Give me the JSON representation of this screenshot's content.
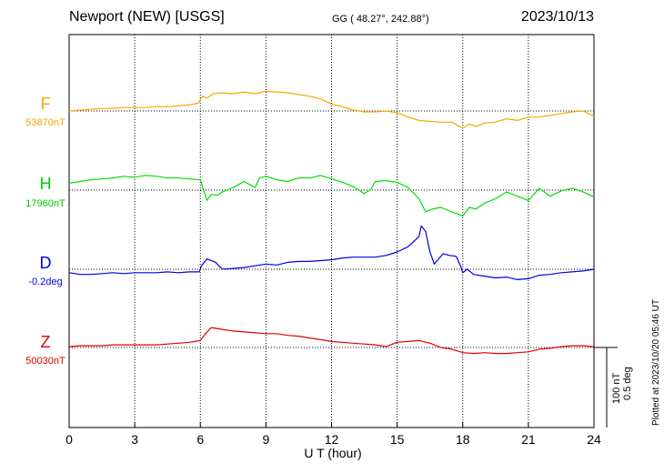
{
  "header": {
    "station": "Newport (NEW)  [USGS]",
    "coords": "GG ( 48.27°, 242.88°)",
    "date": "2023/10/13"
  },
  "footer": {
    "plotted": "Plotted at 2023/10/20 05:46 UT"
  },
  "scale": {
    "nt": "100 nT",
    "deg": "0.5 deg"
  },
  "chart_data": {
    "type": "line",
    "title": "Newport (NEW)  [USGS]",
    "xlabel": "U T (hour)",
    "xlim": [
      0,
      24
    ],
    "xticks": [
      "0",
      "3",
      "6",
      "9",
      "12",
      "15",
      "18",
      "21",
      "24"
    ],
    "grid": true,
    "series": [
      {
        "name": "F",
        "baseline": "53870nT",
        "units": "nT",
        "color": "#f5a800",
        "x": [
          0,
          0.5,
          1,
          1.5,
          2,
          2.5,
          3,
          3.5,
          4,
          4.5,
          5,
          5.5,
          5.9,
          6.1,
          6.3,
          6.6,
          7,
          7.5,
          8,
          8.5,
          9,
          9.5,
          10,
          10.5,
          11,
          11.5,
          12,
          12.5,
          13,
          13.5,
          14,
          14.5,
          15,
          15.5,
          16,
          16.5,
          17,
          17.5,
          18,
          18.3,
          18.6,
          19,
          19.5,
          20,
          20.5,
          21,
          21.5,
          22,
          22.5,
          23,
          23.5,
          24
        ],
        "y": [
          0,
          1,
          2,
          3,
          3,
          4,
          4,
          4,
          5,
          5,
          6,
          7,
          9,
          17,
          15,
          20,
          21,
          20,
          22,
          20,
          23,
          22,
          21,
          19,
          17,
          14,
          8,
          5,
          1,
          -1,
          -1,
          0,
          -2,
          -7,
          -11,
          -12,
          -13,
          -13,
          -20,
          -15,
          -18,
          -14,
          -13,
          -9,
          -11,
          -7,
          -7,
          -5,
          -3,
          -1,
          0,
          -6
        ]
      },
      {
        "name": "H",
        "baseline": "17960nT",
        "units": "nT",
        "color": "#00e000",
        "x": [
          0,
          0.5,
          1,
          1.5,
          2,
          2.5,
          3,
          3.5,
          4,
          4.5,
          5,
          5.5,
          6,
          6.3,
          6.5,
          6.8,
          7,
          7.5,
          8,
          8.5,
          8.7,
          9,
          9.5,
          10,
          10.5,
          11,
          11.5,
          12,
          12.5,
          13,
          13.5,
          13.8,
          14,
          14.5,
          15,
          15.5,
          16,
          16.3,
          16.6,
          17,
          17.5,
          18,
          18.3,
          18.6,
          19,
          19.5,
          20,
          20.5,
          21,
          21.5,
          22,
          22.5,
          23,
          23.5,
          24
        ],
        "y": [
          8,
          10,
          12,
          13,
          14,
          16,
          15,
          17,
          16,
          14,
          14,
          13,
          12,
          -12,
          -5,
          -6,
          -2,
          3,
          10,
          3,
          14,
          16,
          12,
          10,
          14,
          14,
          17,
          13,
          9,
          4,
          -4,
          1,
          10,
          11,
          9,
          3,
          -10,
          -25,
          -22,
          -20,
          -25,
          -30,
          -20,
          -22,
          -15,
          -10,
          -2,
          -7,
          -12,
          2,
          -7,
          -1,
          2,
          -2,
          -8
        ]
      },
      {
        "name": "D",
        "baseline": "-0.2deg",
        "units": "deg",
        "color": "#0000e0",
        "x": [
          0,
          0.5,
          1,
          1.5,
          2,
          2.5,
          3,
          3.5,
          4,
          4.5,
          5,
          5.5,
          5.95,
          6.05,
          6.3,
          6.7,
          7,
          7.5,
          8,
          8.5,
          9,
          9.5,
          10,
          10.5,
          11,
          11.5,
          12,
          12.5,
          13,
          13.5,
          14,
          14.5,
          15,
          15.5,
          16,
          16.1,
          16.3,
          16.5,
          16.7,
          16.9,
          17.1,
          17.4,
          17.7,
          17.9,
          18,
          18.2,
          18.5,
          19,
          19.5,
          20,
          20.5,
          21,
          21.5,
          22,
          22.5,
          23,
          23.5,
          24
        ],
        "y": [
          -4,
          -6,
          -6,
          -5,
          -4,
          -5,
          -4,
          -4,
          -4,
          -3,
          -4,
          -3,
          -3,
          4,
          12,
          8,
          0,
          1,
          2,
          4,
          6,
          5,
          8,
          9,
          9,
          10,
          11,
          13,
          14,
          14,
          14,
          16,
          20,
          26,
          38,
          50,
          44,
          20,
          6,
          12,
          18,
          16,
          15,
          4,
          -4,
          0,
          -6,
          -8,
          -10,
          -9,
          -12,
          -11,
          -7,
          -6,
          -4,
          -3,
          -2,
          0
        ]
      },
      {
        "name": "Z",
        "baseline": "50030nT",
        "units": "nT",
        "color": "#e00000",
        "x": [
          0,
          0.5,
          1,
          1.5,
          2,
          2.5,
          3,
          3.5,
          4,
          4.5,
          5,
          5.5,
          6,
          6.2,
          6.5,
          7,
          7.5,
          8,
          8.5,
          9,
          9.5,
          10,
          10.5,
          11,
          11.5,
          12,
          12.5,
          13,
          13.5,
          14,
          14.5,
          15,
          15.5,
          16,
          16.5,
          17,
          17.5,
          18,
          18.5,
          19,
          19.5,
          20,
          20.5,
          21,
          21.5,
          22,
          22.5,
          23,
          23.5,
          24
        ],
        "y": [
          1,
          2,
          2,
          2,
          3,
          3,
          3,
          3,
          3,
          4,
          5,
          6,
          8,
          15,
          23,
          21,
          19,
          18,
          17,
          16,
          16,
          14,
          13,
          11,
          9,
          7,
          6,
          5,
          4,
          3,
          1,
          6,
          7,
          8,
          5,
          0,
          -2,
          -6,
          -7,
          -6,
          -7,
          -7,
          -6,
          -5,
          -2,
          -1,
          1,
          2,
          2,
          1
        ]
      }
    ]
  }
}
